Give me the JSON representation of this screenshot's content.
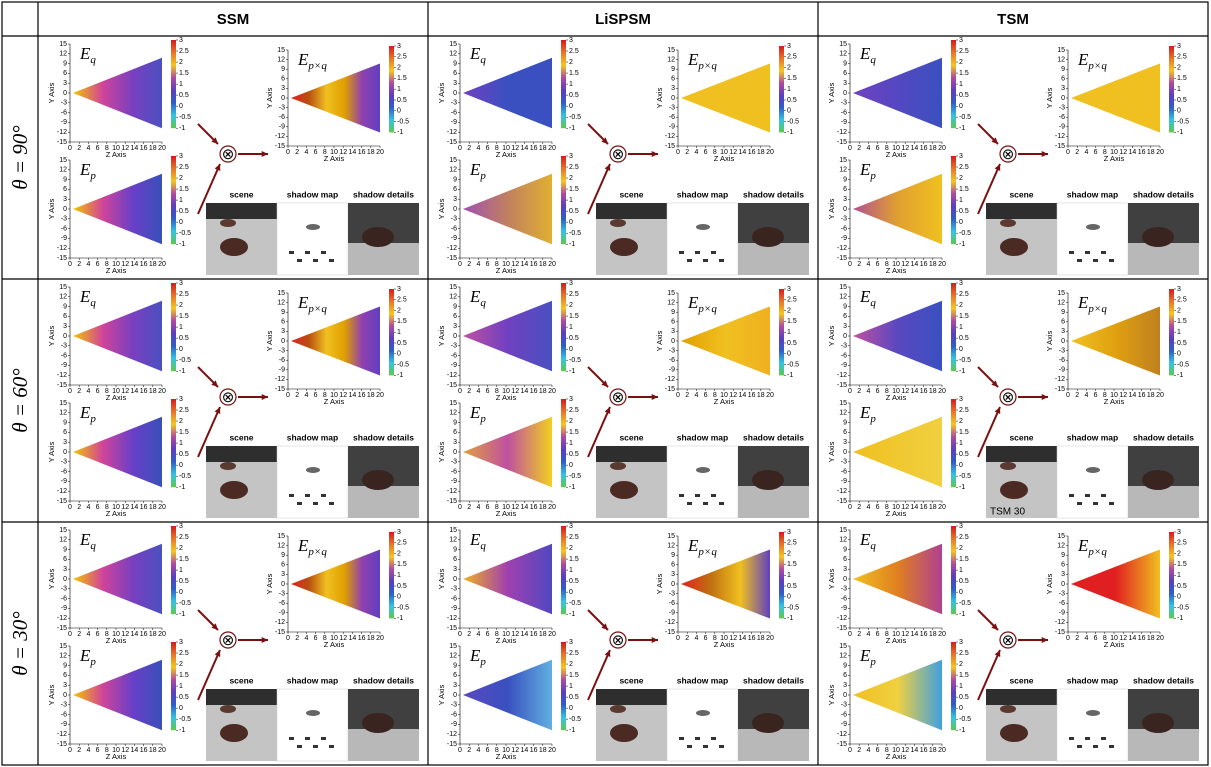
{
  "columns": [
    "SSM",
    "LiSPSM",
    "TSM"
  ],
  "rows": [
    "θ = 90°",
    "θ = 60°",
    "θ = 30°"
  ],
  "axes": {
    "x_label": "Z Axis",
    "y_label": "Y Axis",
    "xticks": [
      0,
      2,
      4,
      6,
      8,
      10,
      12,
      14,
      16,
      18,
      20
    ],
    "yticks": [
      15,
      12,
      9,
      6,
      3,
      0,
      -3,
      -6,
      -9,
      -12,
      -15
    ],
    "colorbar_ticks": [
      3,
      2.5,
      2,
      1.5,
      1,
      0.5,
      0,
      -0.5,
      -1
    ],
    "colormap": [
      "#d7191c",
      "#e8742a",
      "#f3c623",
      "#b04aa0",
      "#5a3fc0",
      "#2f5dc8",
      "#35c4e0",
      "#5ec84a"
    ]
  },
  "plot_titles": {
    "eq": {
      "symbol": "E",
      "subscript": "q"
    },
    "ep": {
      "symbol": "E",
      "subscript": "p"
    },
    "epq": {
      "symbol": "E",
      "subscript": "p×q"
    }
  },
  "operator": "⊗",
  "image_captions": [
    "scene",
    "shadow map",
    "shadow details"
  ],
  "cells": [
    [
      {
        "eq": [
          "#f5c400",
          "#d0449a",
          "#7a3fc0",
          "#4a50c0"
        ],
        "ep": [
          "#f5c400",
          "#d0449a",
          "#6a3fc8",
          "#3850b8"
        ],
        "epq": [
          "#e02020",
          "#b85010",
          "#f0c020",
          "#e0a000",
          "#9040b0",
          "#6040c0"
        ]
      },
      {
        "eq": [
          "#7040c0",
          "#3a50c0",
          "#3a50c0"
        ],
        "ep": [
          "#a050b0",
          "#c08060",
          "#e0b030"
        ],
        "epq": [
          "#f0c020",
          "#f0c020"
        ]
      },
      {
        "eq": [
          "#7040c0",
          "#3a50c0"
        ],
        "ep": [
          "#b05090",
          "#e0a030",
          "#f0c020"
        ],
        "epq": [
          "#f0c020",
          "#f0c020"
        ]
      }
    ],
    [
      {
        "eq": [
          "#f5c400",
          "#d0449a",
          "#7a3fc0",
          "#4a50c0"
        ],
        "ep": [
          "#f5c400",
          "#d0449a",
          "#6a3fc8",
          "#3850b8"
        ],
        "epq": [
          "#e02020",
          "#b85010",
          "#f0c020",
          "#e0a000",
          "#9040b0",
          "#6040c0"
        ]
      },
      {
        "eq": [
          "#c050a0",
          "#7040c0",
          "#4a50c0"
        ],
        "ep": [
          "#e0a040",
          "#c050a0",
          "#f0d020"
        ],
        "epq": [
          "#e0a000",
          "#f0c020",
          "#f0b020"
        ]
      },
      {
        "eq": [
          "#c050a0",
          "#5a48c0",
          "#3a50c0"
        ],
        "ep": [
          "#f0c020",
          "#f0d040"
        ],
        "epq": [
          "#f0c020",
          "#e0a010",
          "#c08020"
        ],
        "scene_label": "TSM 30"
      }
    ],
    [
      {
        "eq": [
          "#f5c400",
          "#d0449a",
          "#7a3fc0",
          "#4a50c0"
        ],
        "ep": [
          "#f5c400",
          "#d0449a",
          "#6a3fc8",
          "#3850b8"
        ],
        "epq": [
          "#e02020",
          "#b85010",
          "#f0c020",
          "#e0a000",
          "#9040b0",
          "#6040c0"
        ]
      },
      {
        "eq": [
          "#f0b020",
          "#a040b0",
          "#5048c0"
        ],
        "ep": [
          "#5a48c0",
          "#3a50c0",
          "#60b0e0"
        ],
        "epq": [
          "#e02020",
          "#c07010",
          "#f0c020",
          "#6040c0"
        ]
      },
      {
        "eq": [
          "#f0c020",
          "#e08020",
          "#b04090"
        ],
        "ep": [
          "#f0c020",
          "#f0d040",
          "#40a0e0"
        ],
        "epq": [
          "#e02020",
          "#e02020",
          "#f0c020"
        ]
      }
    ]
  ]
}
